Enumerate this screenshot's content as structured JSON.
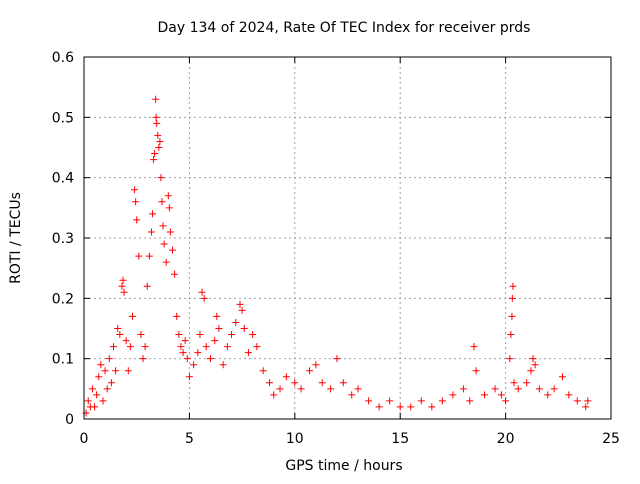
{
  "chart_data": {
    "type": "scatter",
    "title": "Day 134 of 2024, Rate Of TEC Index for receiver prds",
    "xlabel": "GPS time / hours",
    "ylabel": "ROTI / TECUs",
    "xlim": [
      0,
      25
    ],
    "ylim": [
      0,
      0.6
    ],
    "x_ticks": [
      0,
      5,
      10,
      15,
      20,
      25
    ],
    "y_ticks": [
      0,
      0.1,
      0.2,
      0.3,
      0.4,
      0.5,
      0.6
    ],
    "x_tick_labels": [
      "0",
      "5",
      "10",
      "15",
      "20",
      "25"
    ],
    "y_tick_labels": [
      "0",
      "0.1",
      "0.2",
      "0.3",
      "0.4",
      "0.5",
      "0.6"
    ],
    "grid": true,
    "marker": "plus",
    "marker_color": "#ff0000",
    "series": [
      {
        "points": [
          [
            0.1,
            0.01
          ],
          [
            0.2,
            0.03
          ],
          [
            0.3,
            0.02
          ],
          [
            0.4,
            0.05
          ],
          [
            0.5,
            0.02
          ],
          [
            0.6,
            0.04
          ],
          [
            0.7,
            0.07
          ],
          [
            0.8,
            0.09
          ],
          [
            0.9,
            0.03
          ],
          [
            1.0,
            0.08
          ],
          [
            1.1,
            0.05
          ],
          [
            1.2,
            0.1
          ],
          [
            1.3,
            0.06
          ],
          [
            1.4,
            0.12
          ],
          [
            1.5,
            0.08
          ],
          [
            1.6,
            0.15
          ],
          [
            1.7,
            0.14
          ],
          [
            1.8,
            0.22
          ],
          [
            1.85,
            0.23
          ],
          [
            1.9,
            0.21
          ],
          [
            2.0,
            0.13
          ],
          [
            2.1,
            0.08
          ],
          [
            2.2,
            0.12
          ],
          [
            2.3,
            0.17
          ],
          [
            2.4,
            0.38
          ],
          [
            2.45,
            0.36
          ],
          [
            2.5,
            0.33
          ],
          [
            2.6,
            0.27
          ],
          [
            2.7,
            0.14
          ],
          [
            2.8,
            0.1
          ],
          [
            2.9,
            0.12
          ],
          [
            3.0,
            0.22
          ],
          [
            3.1,
            0.27
          ],
          [
            3.2,
            0.31
          ],
          [
            3.25,
            0.34
          ],
          [
            3.3,
            0.43
          ],
          [
            3.35,
            0.44
          ],
          [
            3.4,
            0.53
          ],
          [
            3.42,
            0.5
          ],
          [
            3.45,
            0.49
          ],
          [
            3.5,
            0.47
          ],
          [
            3.55,
            0.45
          ],
          [
            3.6,
            0.46
          ],
          [
            3.65,
            0.4
          ],
          [
            3.7,
            0.36
          ],
          [
            3.75,
            0.32
          ],
          [
            3.8,
            0.29
          ],
          [
            3.9,
            0.26
          ],
          [
            4.0,
            0.37
          ],
          [
            4.05,
            0.35
          ],
          [
            4.1,
            0.31
          ],
          [
            4.2,
            0.28
          ],
          [
            4.3,
            0.24
          ],
          [
            4.4,
            0.17
          ],
          [
            4.5,
            0.14
          ],
          [
            4.6,
            0.12
          ],
          [
            4.7,
            0.11
          ],
          [
            4.8,
            0.13
          ],
          [
            4.9,
            0.1
          ],
          [
            5.0,
            0.07
          ],
          [
            5.2,
            0.09
          ],
          [
            5.4,
            0.11
          ],
          [
            5.5,
            0.14
          ],
          [
            5.6,
            0.21
          ],
          [
            5.7,
            0.2
          ],
          [
            5.8,
            0.12
          ],
          [
            6.0,
            0.1
          ],
          [
            6.2,
            0.13
          ],
          [
            6.3,
            0.17
          ],
          [
            6.4,
            0.15
          ],
          [
            6.6,
            0.09
          ],
          [
            6.8,
            0.12
          ],
          [
            7.0,
            0.14
          ],
          [
            7.2,
            0.16
          ],
          [
            7.4,
            0.19
          ],
          [
            7.5,
            0.18
          ],
          [
            7.6,
            0.15
          ],
          [
            7.8,
            0.11
          ],
          [
            8.0,
            0.14
          ],
          [
            8.2,
            0.12
          ],
          [
            8.5,
            0.08
          ],
          [
            8.8,
            0.06
          ],
          [
            9.0,
            0.04
          ],
          [
            9.3,
            0.05
          ],
          [
            9.6,
            0.07
          ],
          [
            10.0,
            0.06
          ],
          [
            10.3,
            0.05
          ],
          [
            10.7,
            0.08
          ],
          [
            11.0,
            0.09
          ],
          [
            11.3,
            0.06
          ],
          [
            11.7,
            0.05
          ],
          [
            12.0,
            0.1
          ],
          [
            12.3,
            0.06
          ],
          [
            12.7,
            0.04
          ],
          [
            13.0,
            0.05
          ],
          [
            13.5,
            0.03
          ],
          [
            14.0,
            0.02
          ],
          [
            14.5,
            0.03
          ],
          [
            15.0,
            0.02
          ],
          [
            15.5,
            0.02
          ],
          [
            16.0,
            0.03
          ],
          [
            16.5,
            0.02
          ],
          [
            17.0,
            0.03
          ],
          [
            17.5,
            0.04
          ],
          [
            18.0,
            0.05
          ],
          [
            18.3,
            0.03
          ],
          [
            18.5,
            0.12
          ],
          [
            18.6,
            0.08
          ],
          [
            19.0,
            0.04
          ],
          [
            19.5,
            0.05
          ],
          [
            19.8,
            0.04
          ],
          [
            20.0,
            0.03
          ],
          [
            20.2,
            0.1
          ],
          [
            20.25,
            0.14
          ],
          [
            20.3,
            0.17
          ],
          [
            20.32,
            0.2
          ],
          [
            20.35,
            0.22
          ],
          [
            20.4,
            0.06
          ],
          [
            20.6,
            0.05
          ],
          [
            21.0,
            0.06
          ],
          [
            21.2,
            0.08
          ],
          [
            21.3,
            0.1
          ],
          [
            21.4,
            0.09
          ],
          [
            21.6,
            0.05
          ],
          [
            22.0,
            0.04
          ],
          [
            22.3,
            0.05
          ],
          [
            22.7,
            0.07
          ],
          [
            23.0,
            0.04
          ],
          [
            23.4,
            0.03
          ],
          [
            23.8,
            0.02
          ],
          [
            23.9,
            0.03
          ]
        ]
      }
    ]
  }
}
